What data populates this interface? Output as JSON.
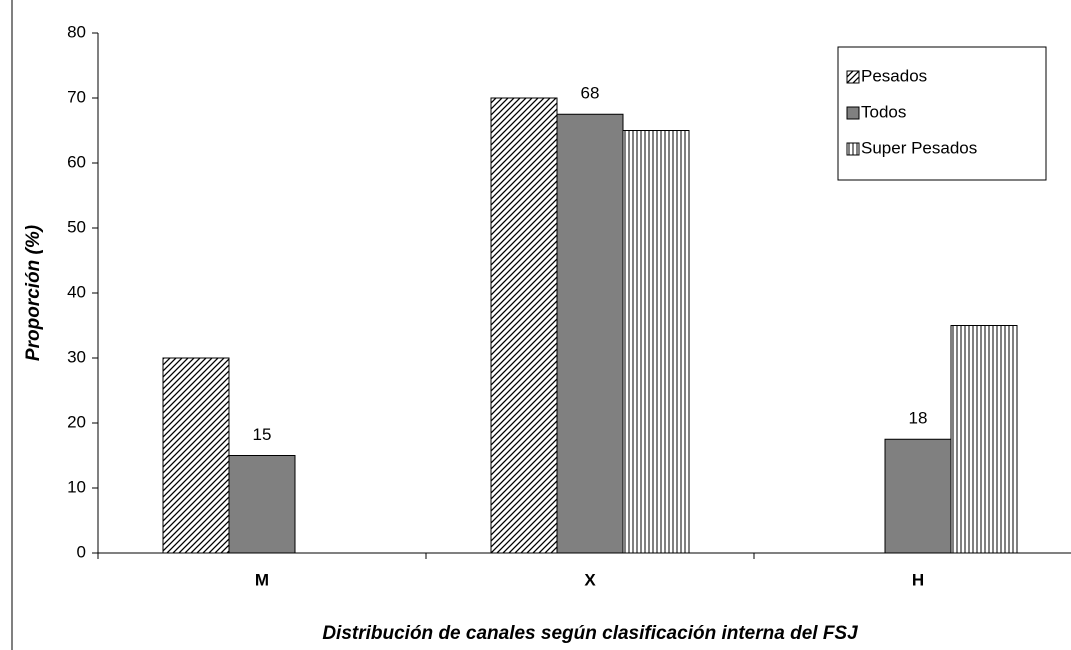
{
  "chart_data": {
    "type": "bar",
    "x_label": "Distribución de canales según clasificación interna del FSJ",
    "y_label": "Proporción (%)",
    "categories": [
      "M",
      "X",
      "H"
    ],
    "series": [
      {
        "name": "Pesados",
        "color": "#000000",
        "pattern": "diagonal",
        "values": [
          30,
          70,
          null
        ]
      },
      {
        "name": "Todos",
        "color": "#808080",
        "pattern": "solid",
        "values": [
          15,
          67.5,
          17.5
        ],
        "value_labels": [
          "15",
          "68",
          "18"
        ]
      },
      {
        "name": "Super Pesados",
        "color": "#000000",
        "pattern": "vertical",
        "values": [
          null,
          65,
          35
        ]
      }
    ],
    "ylim": [
      0,
      80
    ],
    "yticks": [
      0,
      10,
      20,
      30,
      40,
      50,
      60,
      70,
      80
    ],
    "grid": false,
    "legend": "upper right"
  }
}
